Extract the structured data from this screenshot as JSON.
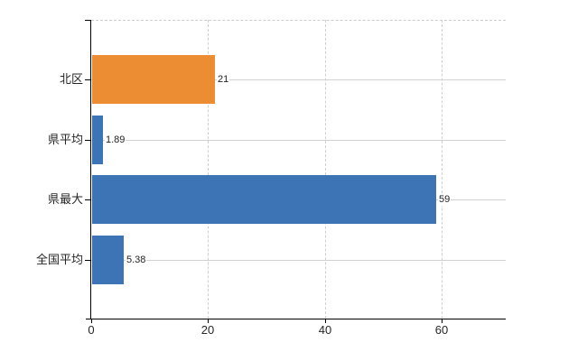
{
  "chart_data": {
    "type": "bar",
    "orientation": "horizontal",
    "title": "",
    "xlabel": "",
    "ylabel": "",
    "categories": [
      "北区",
      "県平均",
      "県最大",
      "全国平均"
    ],
    "values": [
      21,
      1.89,
      59,
      5.38
    ],
    "value_labels": [
      "21",
      "1.89",
      "59",
      "5.38"
    ],
    "bar_colors": [
      "#EC8C33",
      "#3C74B5",
      "#3C74B5",
      "#3C74B5"
    ],
    "x_ticks": [
      0,
      20,
      40,
      60
    ],
    "x_tick_labels": [
      "0",
      "20",
      "40",
      "60"
    ],
    "xlim": [
      0,
      71
    ],
    "grid": true,
    "legend_position": "none",
    "colors": {
      "axis": "#000000",
      "horizontal_gridline": "#d2d2d2",
      "vertical_gridline": "#cfcfcf",
      "text": "#262626",
      "background": "#ffffff"
    }
  }
}
